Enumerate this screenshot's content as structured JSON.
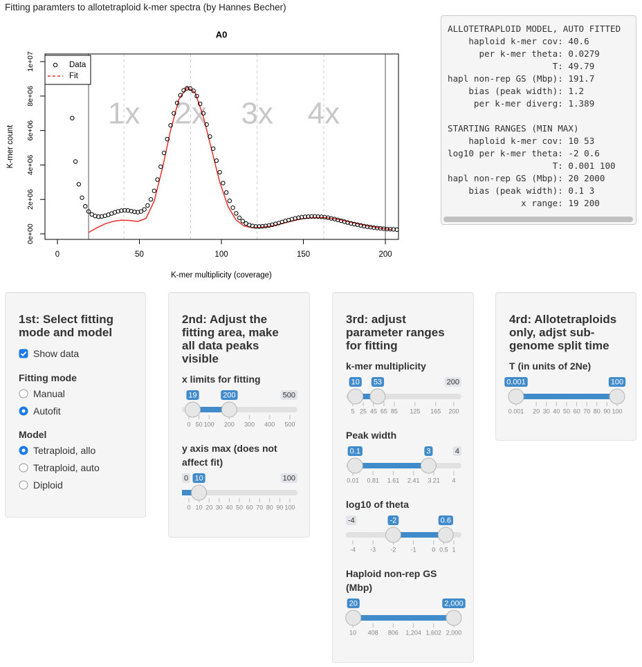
{
  "header": {
    "title": "Fitting paramters to allotetraploid k-mer spectra (by Hannes Becher)"
  },
  "chart_data": {
    "type": "scatter",
    "title": "A0",
    "x_label": "K-mer multiplicity (coverage)",
    "y_label": "K-mer count",
    "xlim": [
      -7.6,
      208
    ],
    "xticks": [
      0,
      50,
      100,
      150,
      200
    ],
    "ylim": [
      -321000,
      10443000
    ],
    "yticks": [
      {
        "value": 0,
        "label": "0e+00"
      },
      {
        "value": 2000000,
        "label": "2e+06"
      },
      {
        "value": 4000000,
        "label": "4e+06"
      },
      {
        "value": 6000000,
        "label": "6e+06"
      },
      {
        "value": 8000000,
        "label": "8e+06"
      },
      {
        "value": 10000000,
        "label": "1e+07"
      }
    ],
    "legend": "topleft",
    "peaks": {
      "x": [
        40.6,
        81.2,
        121.8,
        162.4
      ],
      "labels": [
        "1x",
        "2x",
        "3x",
        "4x"
      ]
    },
    "fit_range": [
      19,
      200
    ],
    "series": [
      {
        "name": "Data",
        "color": "#000000",
        "marker": "circle",
        "x": [
          9,
          11,
          13,
          15,
          17,
          19,
          21,
          23,
          25,
          27,
          29,
          31,
          33,
          35,
          37,
          39,
          41,
          43,
          45,
          47,
          49,
          51,
          53,
          55,
          57,
          59,
          61,
          63,
          65,
          67,
          69,
          71,
          73,
          75,
          77,
          79,
          81,
          83,
          85,
          87,
          89,
          91,
          93,
          95,
          97,
          99,
          101,
          103,
          105,
          107,
          109,
          111,
          113,
          115,
          117,
          119,
          121,
          123,
          125,
          127,
          129,
          131,
          133,
          135,
          137,
          139,
          141,
          143,
          145,
          147,
          149,
          151,
          153,
          155,
          157,
          159,
          161,
          163,
          165,
          167,
          169,
          171,
          173,
          175,
          177,
          179,
          181,
          183,
          185,
          187,
          189,
          191,
          193,
          195,
          197,
          199,
          201,
          203,
          205,
          207
        ],
        "values": [
          6720000,
          4200000,
          2880000,
          2100000,
          1600000,
          1300000,
          1130000,
          1040000,
          1000000,
          1010000,
          1050000,
          1110000,
          1180000,
          1250000,
          1310000,
          1350000,
          1370000,
          1360000,
          1320000,
          1280000,
          1260000,
          1300000,
          1420000,
          1650000,
          2000000,
          2500000,
          3150000,
          3900000,
          4700000,
          5500000,
          6300000,
          7000000,
          7600000,
          8050000,
          8330000,
          8450000,
          8440000,
          8300000,
          8000000,
          7550000,
          7000000,
          6350000,
          5650000,
          4950000,
          4250000,
          3580000,
          2950000,
          2400000,
          1920000,
          1520000,
          1190000,
          930000,
          740000,
          600000,
          510000,
          460000,
          430000,
          430000,
          440000,
          460000,
          490000,
          530000,
          580000,
          630000,
          690000,
          750000,
          800000,
          850000,
          900000,
          940000,
          970000,
          990000,
          1000000,
          1010000,
          1010000,
          1000000,
          990000,
          970000,
          940000,
          900000,
          860000,
          810000,
          760000,
          710000,
          660000,
          610000,
          570000,
          530000,
          490000,
          450000,
          420000,
          390000,
          360000,
          340000,
          320000,
          300000,
          280000,
          270000,
          260000,
          250000
        ]
      },
      {
        "name": "Fit",
        "color": "#e8302a",
        "marker": "line",
        "x": [
          19,
          24,
          29,
          34,
          39,
          44,
          49,
          54,
          59,
          64,
          69,
          74,
          79,
          84,
          89,
          94,
          99,
          104,
          109,
          114,
          119,
          124,
          129,
          134,
          139,
          144,
          149,
          154,
          159,
          164,
          169,
          174,
          179,
          184,
          189,
          194,
          199,
          204
        ],
        "values": [
          80000,
          350000,
          580000,
          730000,
          800000,
          780000,
          720000,
          900000,
          1900000,
          3800000,
          6000000,
          7800000,
          8500000,
          8200000,
          6800000,
          4900000,
          3000000,
          1600000,
          800000,
          450000,
          360000,
          370000,
          430000,
          530000,
          650000,
          770000,
          870000,
          930000,
          950000,
          940000,
          880000,
          790000,
          680000,
          570000,
          470000,
          380000,
          300000,
          240000
        ]
      }
    ]
  },
  "output": {
    "model": [
      "ALLOTETRAPLOID MODEL, AUTO FITTED",
      "    haploid k-mer cov: 40.6",
      "      per k-mer theta: 0.0279",
      "                    T: 49.79",
      "hapl non-rep GS (Mbp): 191.7",
      "    bias (peak width): 1.2",
      "     per k-mer diverg: 1.389"
    ],
    "ranges": [
      "STARTING RANGES (MIN MAX)",
      "    haploid k-mer cov: 10 53",
      "log10 per k-mer theta: -2 0.6",
      "                    T: 0.001 100",
      "hapl non-rep GS (Mbp): 20 2000",
      "    bias (peak width): 0.1 3",
      "              x range: 19 200"
    ]
  },
  "panels": [
    {
      "title": "1st: Select fitting mode and model",
      "checkbox": {
        "label": "Show data",
        "checked": true
      },
      "radio_groups": [
        {
          "label": "Fitting mode",
          "options": [
            "Manual",
            "Autofit"
          ],
          "selected": 1
        },
        {
          "label": "Model",
          "options": [
            "Tetraploid, allo",
            "Tetraploid, auto",
            "Diploid"
          ],
          "selected": 0
        }
      ]
    },
    {
      "title": "2nd: Adjust the fitting area, make all data peaks visible",
      "sliders": [
        {
          "label": "x limits for fitting",
          "range": [
            0,
            500
          ],
          "values": [
            19,
            200
          ],
          "edges_shown": [
            false,
            true
          ],
          "grid": [
            0,
            50,
            100,
            200,
            300,
            400,
            500
          ]
        },
        {
          "label": "y axis max (does not affect fit)",
          "range": [
            0,
            100
          ],
          "values": [
            10
          ],
          "edges_shown": [
            true,
            true
          ],
          "grid": [
            0,
            10,
            20,
            30,
            40,
            50,
            60,
            70,
            80,
            90,
            100
          ]
        }
      ]
    },
    {
      "title": "3rd: adjust parameter ranges for fitting",
      "sliders": [
        {
          "label": "k-mer multiplicity",
          "range": [
            5,
            200
          ],
          "values": [
            10,
            53
          ],
          "edges_shown": [
            false,
            true
          ],
          "grid": [
            5,
            25,
            45,
            65,
            85,
            125,
            165,
            200
          ]
        },
        {
          "label": "Peak width",
          "range": [
            0.01,
            4
          ],
          "values": [
            0.1,
            3
          ],
          "edges_shown": [
            false,
            true
          ],
          "grid": [
            0.01,
            0.81,
            1.61,
            2.41,
            3.21,
            4
          ]
        },
        {
          "label": "log10 of theta",
          "range": [
            -4,
            1
          ],
          "values": [
            -2,
            0.6
          ],
          "edges_shown": [
            true,
            false
          ],
          "grid": [
            -4,
            -3,
            -2,
            -1,
            0,
            0.5,
            1
          ]
        },
        {
          "label": "Haploid non-rep GS (Mbp)",
          "range": [
            10,
            2000
          ],
          "values": [
            20,
            2000
          ],
          "value_labels": [
            "20",
            "2,000"
          ],
          "edges_shown": [
            false,
            false
          ],
          "grid": [
            10,
            408,
            806,
            {
              "value": 1204,
              "label": "1,204"
            },
            {
              "value": 1602,
              "label": "1,602"
            },
            {
              "value": 2000,
              "label": "2,000"
            }
          ]
        }
      ]
    },
    {
      "title": "4rd: Allotetraploids only, adjst sub-genome split time",
      "sliders": [
        {
          "label": "T (in units of 2Ne)",
          "range": [
            0.001,
            100
          ],
          "values": [
            0.001,
            100
          ],
          "edges_shown": [
            false,
            false
          ],
          "grid": [
            0.001,
            20,
            30,
            40,
            50,
            60,
            70,
            80,
            90,
            100
          ]
        }
      ]
    }
  ]
}
